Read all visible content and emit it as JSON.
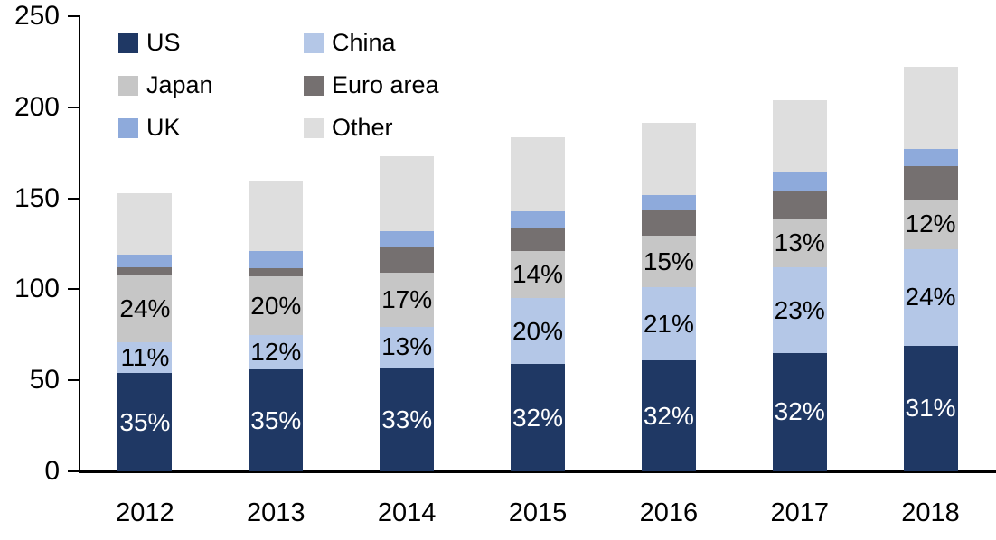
{
  "chart_data": {
    "type": "bar",
    "stacked": true,
    "title": "",
    "xlabel": "",
    "ylabel": "",
    "categories": [
      "2012",
      "2013",
      "2014",
      "2015",
      "2016",
      "2017",
      "2018"
    ],
    "series": [
      {
        "name": "US",
        "color": "#1f3864",
        "values": [
          54,
          56,
          57,
          59,
          61,
          65,
          69
        ],
        "pct_labels": [
          "35%",
          "35%",
          "33%",
          "32%",
          "32%",
          "32%",
          "31%"
        ],
        "label_color": "#ffffff"
      },
      {
        "name": "China",
        "color": "#b4c7e7",
        "values": [
          17,
          19,
          22.5,
          36,
          40,
          47,
          53
        ],
        "pct_labels": [
          "11%",
          "12%",
          "13%",
          "20%",
          "21%",
          "23%",
          "24%"
        ],
        "label_color": "#000000"
      },
      {
        "name": "Japan",
        "color": "#c6c6c6",
        "values": [
          36.5,
          32,
          29.5,
          26,
          28.5,
          27,
          27.5
        ],
        "pct_labels": [
          "24%",
          "20%",
          "17%",
          "14%",
          "15%",
          "13%",
          "12%"
        ],
        "label_color": "#000000"
      },
      {
        "name": "Euro area",
        "color": "#757070",
        "values": [
          4.5,
          4.5,
          14.5,
          12.5,
          14,
          15.5,
          18
        ],
        "pct_labels": null,
        "label_color": null
      },
      {
        "name": "UK",
        "color": "#8eaadb",
        "values": [
          7,
          9.5,
          8.5,
          9.5,
          8.5,
          9.5,
          9.5
        ],
        "pct_labels": null,
        "label_color": null
      },
      {
        "name": "Other",
        "color": "#dedede",
        "values": [
          34,
          38.5,
          41,
          40.5,
          39.5,
          40,
          45
        ],
        "pct_labels": null,
        "label_color": null
      }
    ],
    "totals": [
      153,
      159.5,
      173,
      183.5,
      191.5,
      204,
      222
    ],
    "ylim": [
      0,
      250
    ],
    "yticks": [
      0,
      50,
      100,
      150,
      200,
      250
    ],
    "grid": false,
    "legend_position": "top-left",
    "legend_order": [
      "US",
      "China",
      "Japan",
      "Euro area",
      "UK",
      "Other"
    ],
    "legend_columns": 2,
    "axis_color": "#000000",
    "background_color": "#ffffff"
  }
}
